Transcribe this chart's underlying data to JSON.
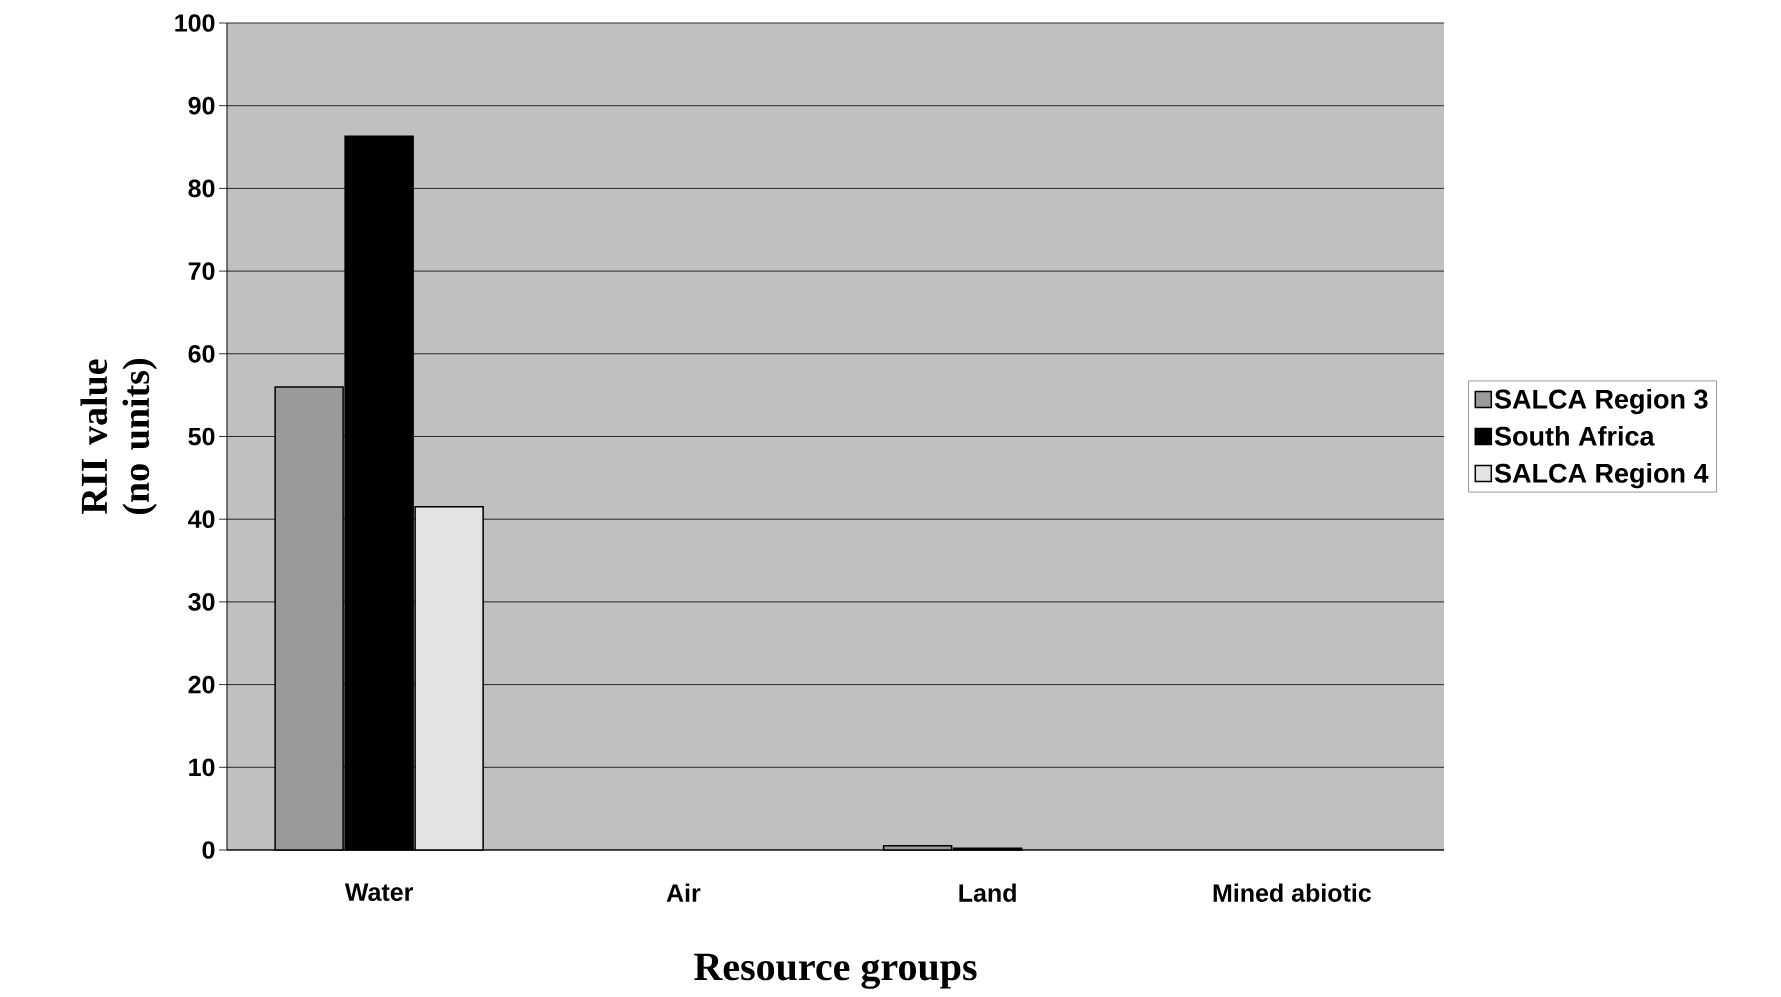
{
  "chart_data": {
    "type": "bar",
    "xlabel": "Resource groups",
    "ylabel": "RII value (no units)",
    "categories": [
      "Water",
      "Air",
      "Land",
      "Mined abiotic"
    ],
    "series": [
      {
        "name": "SALCA Region 3",
        "color": "#9a9a9a",
        "values": [
          56,
          null,
          0.5,
          null
        ]
      },
      {
        "name": "South Africa",
        "color": "#000000",
        "values": [
          86.3,
          null,
          0.2,
          null
        ]
      },
      {
        "name": "SALCA Region 4",
        "color": "#e4e4e4",
        "values": [
          41.5,
          null,
          null,
          null
        ]
      }
    ],
    "ylim": [
      0,
      100
    ],
    "yticks": [
      0,
      10,
      20,
      30,
      40,
      50,
      60,
      70,
      80,
      90,
      100
    ],
    "grid": "y",
    "legend": "right"
  }
}
